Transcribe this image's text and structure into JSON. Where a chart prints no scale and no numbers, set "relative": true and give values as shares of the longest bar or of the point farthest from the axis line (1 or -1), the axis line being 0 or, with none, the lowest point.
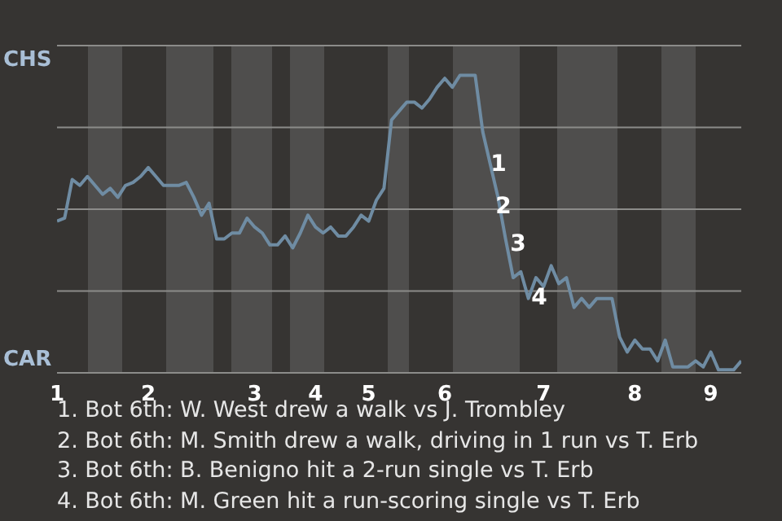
{
  "chart_data": {
    "type": "line",
    "relative": true,
    "categories": [
      "1",
      null,
      null,
      null,
      null,
      null,
      null,
      null,
      null,
      null,
      null,
      null,
      "2",
      null,
      null,
      null,
      null,
      null,
      null,
      null,
      null,
      null,
      null,
      null,
      null,
      null,
      "3",
      null,
      null,
      null,
      null,
      null,
      null,
      null,
      "4",
      null,
      null,
      null,
      null,
      null,
      null,
      "5",
      null,
      null,
      null,
      null,
      null,
      null,
      null,
      null,
      null,
      "6",
      null,
      null,
      null,
      null,
      null,
      null,
      null,
      null,
      null,
      null,
      null,
      null,
      "7",
      null,
      null,
      null,
      null,
      null,
      null,
      null,
      null,
      null,
      null,
      null,
      "8",
      null,
      null,
      null,
      null,
      null,
      null,
      null,
      null,
      null,
      "9",
      null,
      null,
      null,
      null
    ],
    "series": [
      {
        "color": "#6f8ca3",
        "values": [
          0.51,
          0.52,
          0.65,
          0.63,
          0.66,
          0.63,
          0.6,
          0.62,
          0.59,
          0.63,
          0.64,
          0.66,
          0.69,
          0.66,
          0.63,
          0.63,
          0.63,
          0.64,
          0.59,
          0.53,
          0.57,
          0.45,
          0.45,
          0.47,
          0.47,
          0.52,
          0.49,
          0.47,
          0.43,
          0.43,
          0.46,
          0.42,
          0.47,
          0.53,
          0.49,
          0.47,
          0.49,
          0.46,
          0.46,
          0.49,
          0.53,
          0.51,
          0.58,
          0.62,
          0.85,
          0.88,
          0.91,
          0.91,
          0.89,
          0.92,
          0.96,
          0.99,
          0.96,
          1,
          1,
          1,
          0.81,
          0.7,
          0.59,
          0.45,
          0.32,
          0.34,
          0.25,
          0.32,
          0.29,
          0.36,
          0.3,
          0.32,
          0.22,
          0.25,
          0.22,
          0.25,
          0.25,
          0.25,
          0.12,
          0.07,
          0.11,
          0.08,
          0.08,
          0.04,
          0.11,
          0.02,
          0.02,
          0.02,
          0.04,
          0.02,
          0.07,
          0.01,
          0.01,
          0.01,
          0.04
        ]
      }
    ],
    "grid": "y",
    "marker": "none",
    "annotations": [
      "CHS",
      "CAR",
      "1",
      "2",
      "3",
      "4",
      "1. Bot 6th: W. West drew a walk vs J. Trombley",
      "2. Bot 6th: M. Smith drew a walk, driving in 1 run vs T. Erb",
      "3. Bot 6th: B. Benigno hit a 2-run single vs T. Erb",
      "4. Bot 6th: M. Green hit a run-scoring single vs T. Erb"
    ]
  }
}
